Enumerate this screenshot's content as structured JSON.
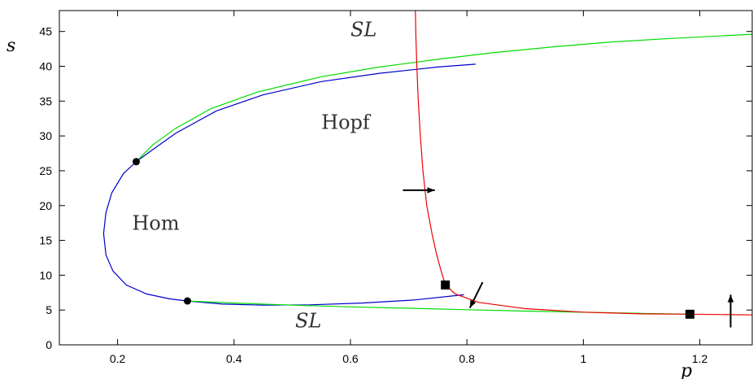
{
  "chart_data": {
    "type": "line",
    "xlabel": "p",
    "ylabel": "s",
    "xlim": [
      0.1,
      1.29
    ],
    "ylim": [
      0,
      48
    ],
    "x_ticks": [
      0.2,
      0.4,
      0.6,
      0.8,
      1,
      1.2
    ],
    "x_tick_labels": [
      "0.2",
      "0.4",
      "0.6",
      "0.8",
      "1",
      "1.2"
    ],
    "y_ticks": [
      0,
      5,
      10,
      15,
      20,
      25,
      30,
      35,
      40,
      45
    ],
    "y_tick_labels": [
      "0",
      "5",
      "10",
      "15",
      "20",
      "25",
      "30",
      "35",
      "40",
      "45"
    ],
    "grid": false,
    "colors": {
      "hom": "#0000cc",
      "sl": "#00dd00",
      "hopf": "#ee0000",
      "marker": "#000000"
    },
    "series": [
      {
        "key": "hom",
        "values": [
          [
            0.815,
            40.3
          ],
          [
            0.75,
            39.9
          ],
          [
            0.65,
            39.0
          ],
          [
            0.55,
            37.8
          ],
          [
            0.45,
            35.9
          ],
          [
            0.37,
            33.6
          ],
          [
            0.3,
            30.4
          ],
          [
            0.255,
            27.7
          ],
          [
            0.232,
            26.3
          ],
          [
            0.21,
            24.6
          ],
          [
            0.19,
            21.8
          ],
          [
            0.18,
            19.0
          ],
          [
            0.176,
            16.0
          ],
          [
            0.18,
            12.9
          ],
          [
            0.192,
            10.6
          ],
          [
            0.215,
            8.6
          ],
          [
            0.25,
            7.3
          ],
          [
            0.29,
            6.6
          ],
          [
            0.32,
            6.3
          ],
          [
            0.38,
            5.85
          ],
          [
            0.45,
            5.7
          ],
          [
            0.53,
            5.75
          ],
          [
            0.62,
            6.0
          ],
          [
            0.71,
            6.45
          ],
          [
            0.795,
            7.2
          ]
        ]
      },
      {
        "key": "sl",
        "values": [
          [
            0.232,
            26.3
          ],
          [
            0.26,
            28.7
          ],
          [
            0.3,
            31.1
          ],
          [
            0.36,
            33.9
          ],
          [
            0.44,
            36.3
          ],
          [
            0.55,
            38.5
          ],
          [
            0.65,
            39.9
          ],
          [
            0.75,
            41.0
          ],
          [
            0.85,
            42.0
          ],
          [
            0.95,
            42.8
          ],
          [
            1.05,
            43.5
          ],
          [
            1.15,
            44.0
          ],
          [
            1.29,
            44.6
          ]
        ]
      },
      {
        "key": "sl",
        "values": [
          [
            0.32,
            6.3
          ],
          [
            0.4,
            6.0
          ],
          [
            0.5,
            5.7
          ],
          [
            0.6,
            5.45
          ],
          [
            0.7,
            5.25
          ],
          [
            0.8,
            5.05
          ],
          [
            0.9,
            4.85
          ],
          [
            1.0,
            4.68
          ],
          [
            1.1,
            4.52
          ],
          [
            1.183,
            4.4
          ]
        ]
      },
      {
        "key": "hopf",
        "values": [
          [
            0.7115,
            48
          ],
          [
            0.7125,
            44
          ],
          [
            0.714,
            40
          ],
          [
            0.7165,
            35
          ],
          [
            0.72,
            30
          ],
          [
            0.7245,
            25
          ],
          [
            0.731,
            20
          ],
          [
            0.74,
            16
          ],
          [
            0.748,
            13
          ],
          [
            0.756,
            10.5
          ],
          [
            0.763,
            8.6
          ],
          [
            0.78,
            7.3
          ],
          [
            0.82,
            6.1
          ],
          [
            0.9,
            5.2
          ],
          [
            1.0,
            4.7
          ],
          [
            1.1,
            4.45
          ],
          [
            1.183,
            4.4
          ],
          [
            1.29,
            4.3
          ]
        ]
      }
    ],
    "points": [
      {
        "shape": "circle",
        "x": 0.232,
        "y": 26.3
      },
      {
        "shape": "circle",
        "x": 0.32,
        "y": 6.3
      },
      {
        "shape": "square",
        "x": 0.763,
        "y": 8.6
      },
      {
        "shape": "square",
        "x": 1.183,
        "y": 4.4
      }
    ],
    "annotations": [
      {
        "text": "SL",
        "italic": true,
        "x": 0.6,
        "y": 44.3
      },
      {
        "text": "Hopf",
        "italic": false,
        "x": 0.55,
        "y": 31
      },
      {
        "text": "Hom",
        "italic": false,
        "x": 0.225,
        "y": 16.5
      },
      {
        "text": "SL",
        "italic": true,
        "x": 0.505,
        "y": 2.5
      }
    ],
    "arrows": [
      {
        "from": [
          0.69,
          22.2
        ],
        "to": [
          0.745,
          22.2
        ]
      },
      {
        "from": [
          0.827,
          9.0
        ],
        "to": [
          0.805,
          5.3
        ]
      },
      {
        "from": [
          1.253,
          2.5
        ],
        "to": [
          1.253,
          7.2
        ]
      }
    ]
  }
}
